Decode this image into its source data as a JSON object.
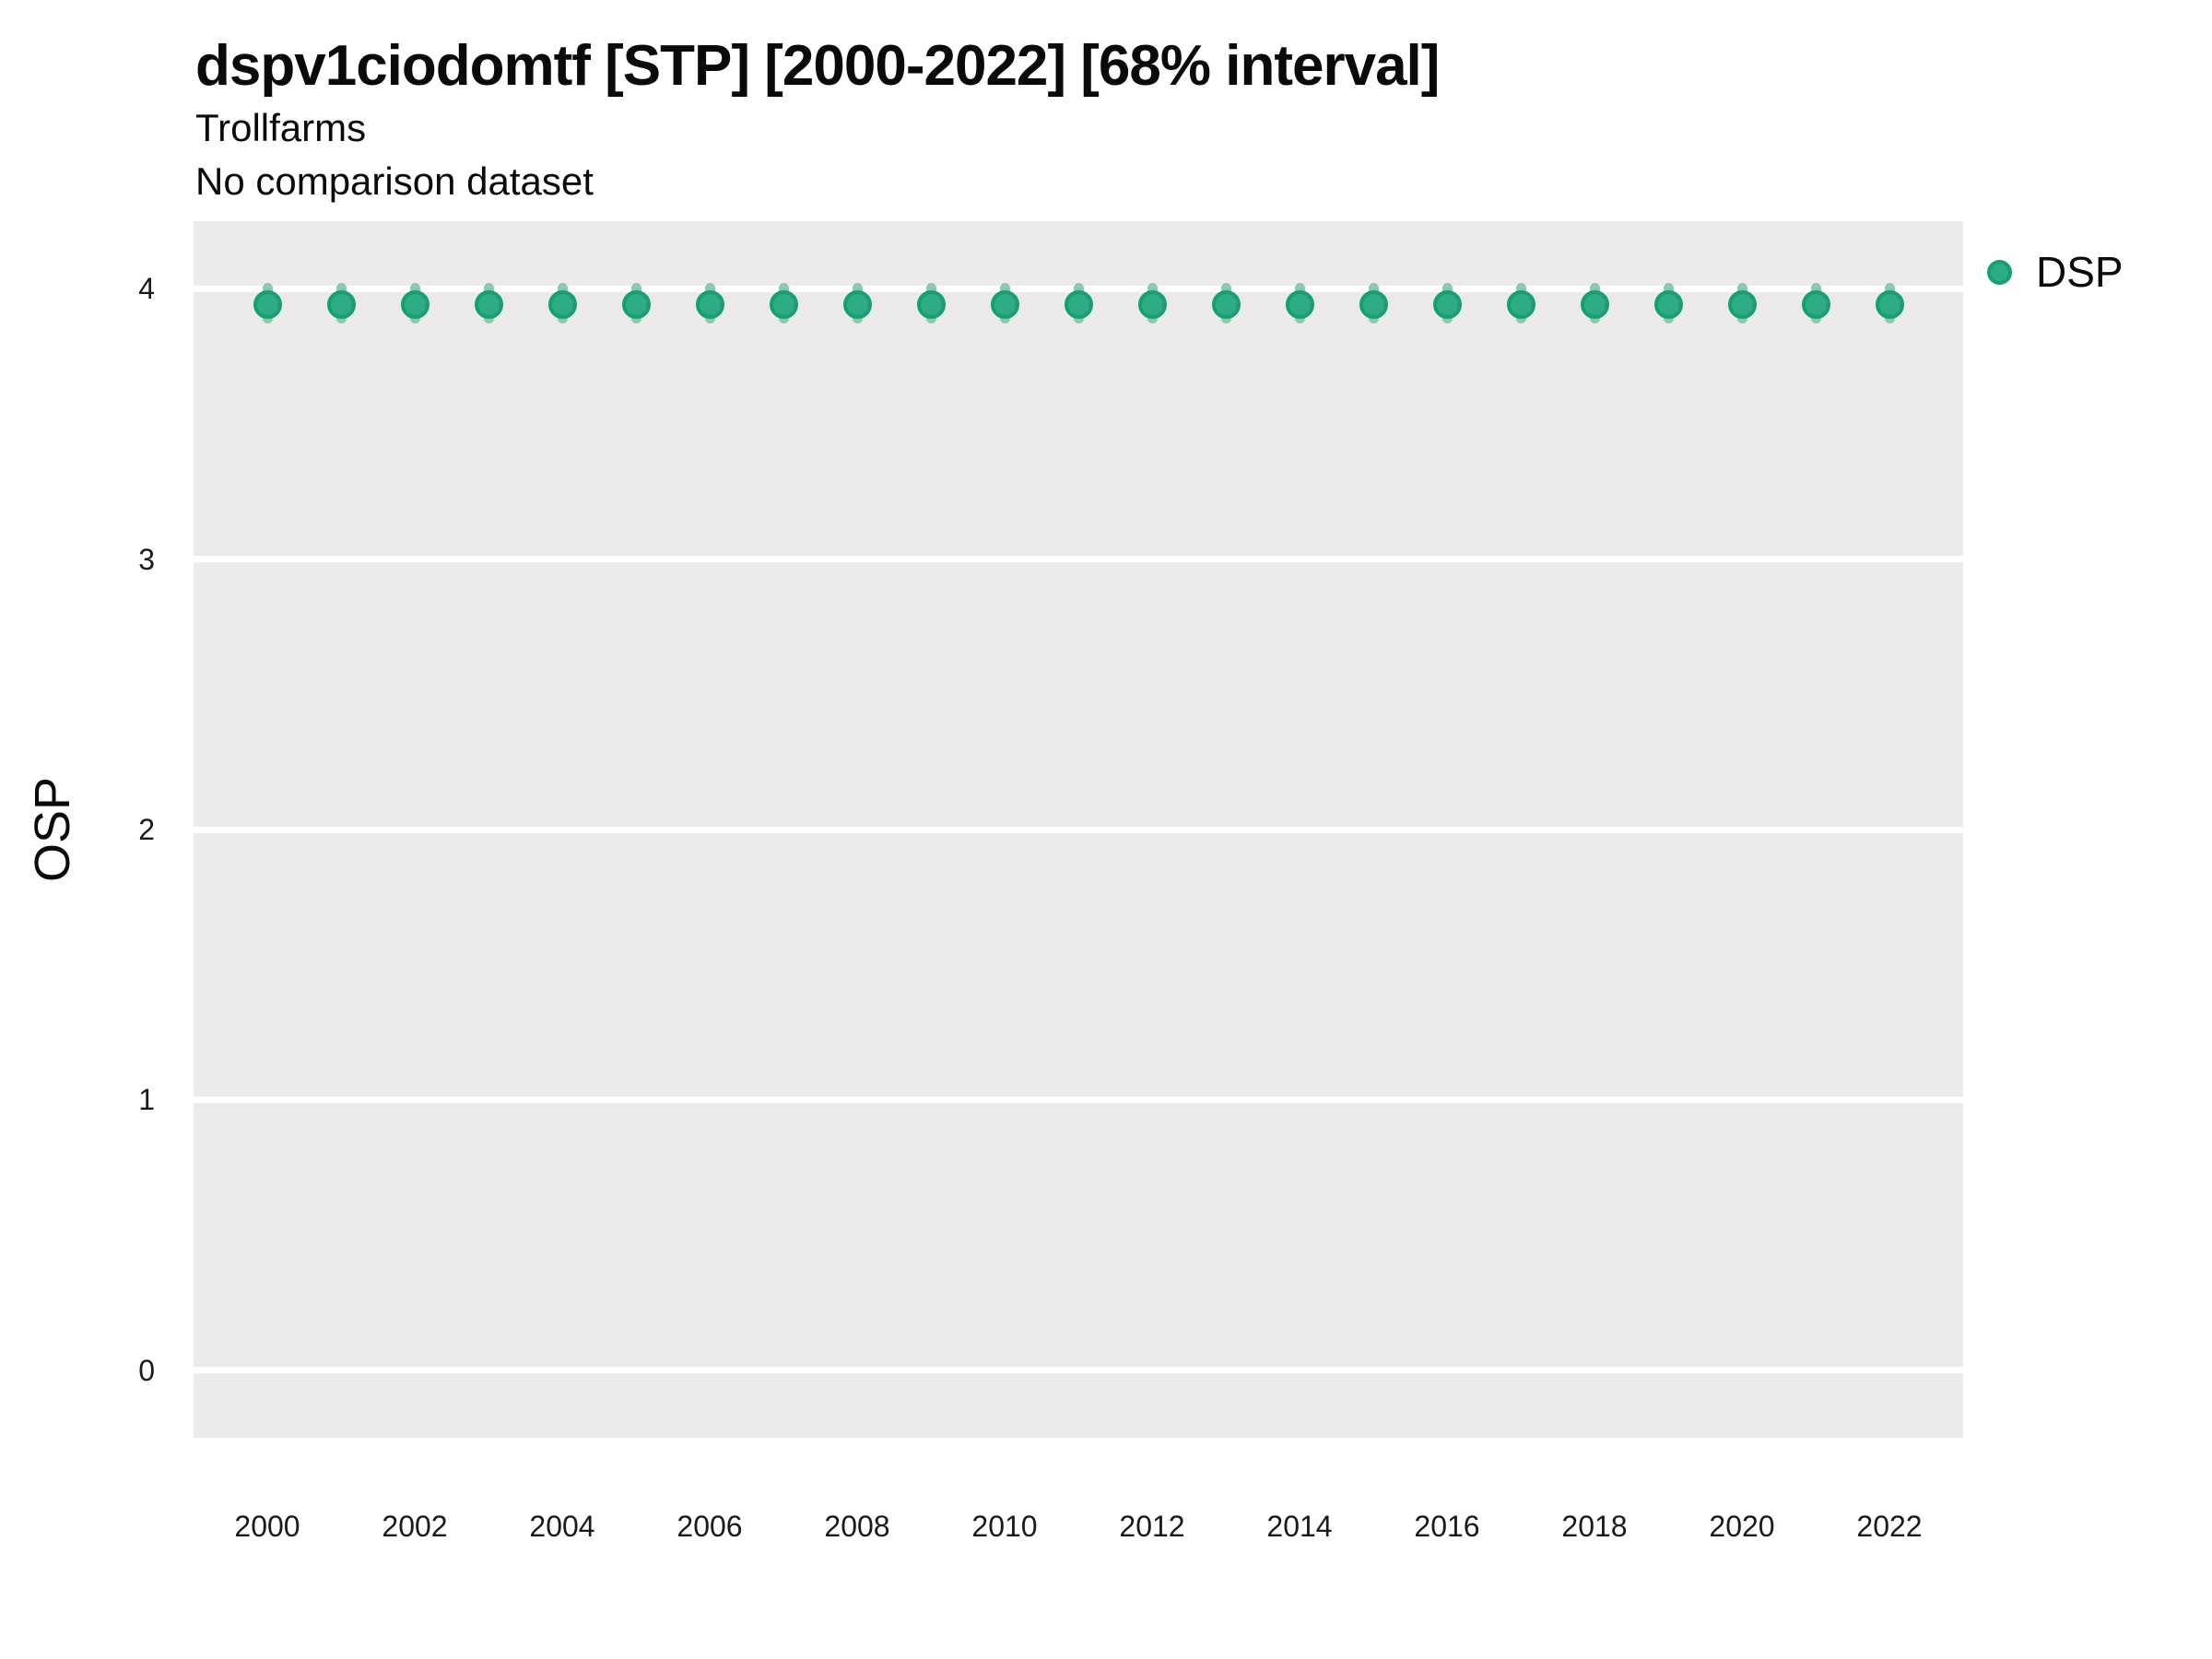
{
  "header": {
    "title": "dspv1ciodomtf [STP] [2000-2022] [68% interval]",
    "subtitle": "Trollfarms",
    "comparison_note": "No comparison dataset"
  },
  "legend": {
    "position": "right-top",
    "items": [
      {
        "label": "DSP",
        "swatch": "circle",
        "color": "#2BAA80"
      }
    ]
  },
  "axes": {
    "y_label": "OSP",
    "x_label": "",
    "y_ticks": [
      0,
      1,
      2,
      3,
      4
    ],
    "x_ticks": [
      2000,
      2002,
      2004,
      2006,
      2008,
      2010,
      2012,
      2014,
      2016,
      2018,
      2020,
      2022
    ]
  },
  "colors": {
    "panel_background": "#EBEBEB",
    "gridline": "#FFFFFF",
    "point_fill": "#2EAB82",
    "point_stroke": "#189E75",
    "interval_band": "#88CBAC",
    "tick_text": "#1a1a1a",
    "title_text": "#0a0a0a"
  },
  "chart_data": {
    "type": "scatter",
    "title": "dspv1ciodomtf [STP] [2000-2022] [68% interval]",
    "subtitle": "Trollfarms",
    "note": "No comparison dataset",
    "xlabel": "",
    "ylabel": "OSP",
    "xlim": [
      1999,
      2023
    ],
    "ylim": [
      -0.25,
      4.25
    ],
    "grid": "major-horizontal-only",
    "legend_position": "right",
    "interval_label": "68% interval",
    "series": [
      {
        "name": "DSP",
        "x": [
          2000,
          2001,
          2002,
          2003,
          2004,
          2005,
          2006,
          2007,
          2008,
          2009,
          2010,
          2011,
          2012,
          2013,
          2014,
          2015,
          2016,
          2017,
          2018,
          2019,
          2020,
          2021,
          2022
        ],
        "y": [
          3.94,
          3.94,
          3.94,
          3.94,
          3.94,
          3.94,
          3.94,
          3.94,
          3.94,
          3.94,
          3.94,
          3.94,
          3.94,
          3.94,
          3.94,
          3.94,
          3.94,
          3.94,
          3.94,
          3.94,
          3.94,
          3.94,
          3.94
        ],
        "y_lo": [
          3.87,
          3.87,
          3.87,
          3.87,
          3.87,
          3.87,
          3.87,
          3.87,
          3.87,
          3.87,
          3.87,
          3.87,
          3.87,
          3.87,
          3.87,
          3.87,
          3.87,
          3.87,
          3.87,
          3.87,
          3.87,
          3.87,
          3.87
        ],
        "y_hi": [
          4.02,
          4.02,
          4.02,
          4.02,
          4.02,
          4.02,
          4.02,
          4.02,
          4.02,
          4.02,
          4.02,
          4.02,
          4.02,
          4.02,
          4.02,
          4.02,
          4.02,
          4.02,
          4.02,
          4.02,
          4.02,
          4.02,
          4.02
        ]
      }
    ]
  }
}
